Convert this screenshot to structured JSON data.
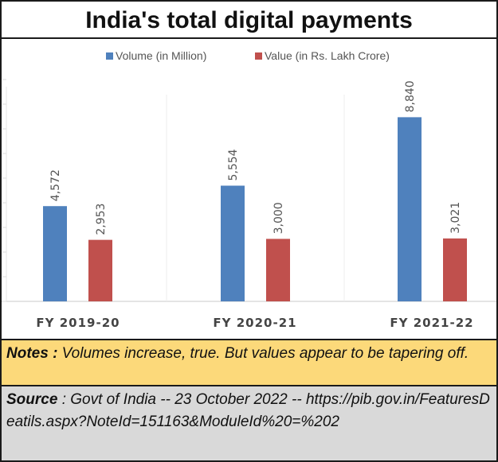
{
  "chart_data": {
    "type": "bar",
    "title": "India's total digital payments",
    "categories": [
      "FY 2019-20",
      "FY 2020-21",
      "FY 2021-22"
    ],
    "series": [
      {
        "name": "Volume (in Million)",
        "values": [
          4572,
          5554,
          8840
        ],
        "labels": [
          "4,572",
          "5,554",
          "8,840"
        ],
        "color": "#4f81bd"
      },
      {
        "name": "Value (in Rs. Lakh Crore)",
        "values": [
          2953,
          3000,
          3021
        ],
        "labels": [
          "2,953",
          "3,000",
          "3,021"
        ],
        "color": "#c0504d"
      }
    ],
    "xlabel": "",
    "ylabel": "",
    "ylim": [
      0,
      10000
    ],
    "legend": "top-center",
    "grid": false
  },
  "notes": {
    "label": "Notes",
    "separator": " :",
    "text": "  Volumes increase, true. But values appear to be tapering off."
  },
  "source": {
    "label": "Source",
    "separator": " :",
    "text": " Govt of India --  23 October 2022 -- https://pib.gov.in/FeaturesDeatils.aspx?NoteId=151163&ModuleId%20=%202"
  }
}
